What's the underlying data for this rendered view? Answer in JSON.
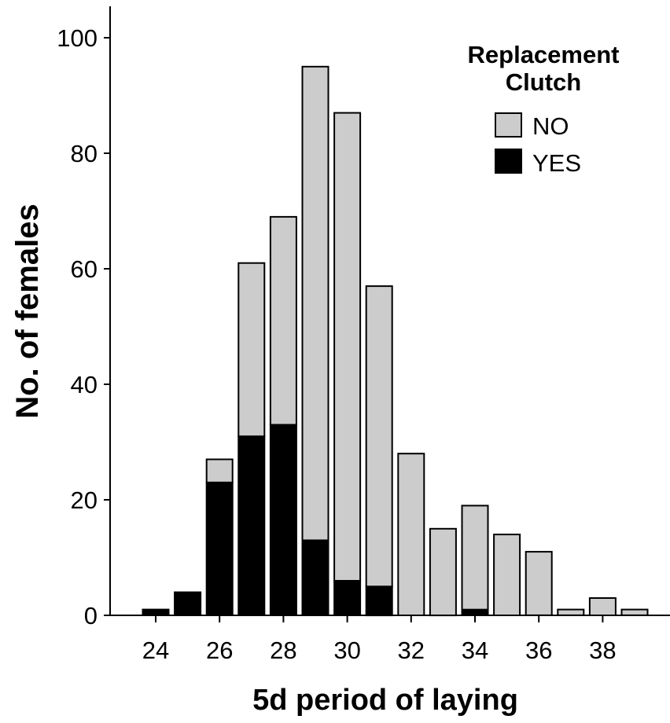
{
  "chart_data": {
    "type": "bar",
    "stacked": true,
    "xlabel": "5d period of laying",
    "ylabel": "No. of females",
    "x": [
      24,
      25,
      26,
      27,
      28,
      29,
      30,
      31,
      32,
      33,
      34,
      35,
      36,
      37,
      38,
      39
    ],
    "x_tick_labels": [
      "24",
      "26",
      "28",
      "30",
      "32",
      "34",
      "36",
      "38"
    ],
    "y_tick_labels": [
      "0",
      "20",
      "40",
      "60",
      "80",
      "100"
    ],
    "ylim": [
      0,
      105
    ],
    "grid": false,
    "legend": {
      "title": "Replacement Clutch",
      "title_lines": [
        "Replacement",
        "Clutch"
      ],
      "position": "top-right"
    },
    "series": [
      {
        "name": "YES",
        "color": "#000000",
        "values": [
          1,
          4,
          23,
          31,
          33,
          13,
          6,
          5,
          0,
          0,
          1,
          0,
          0,
          0,
          0,
          0
        ]
      },
      {
        "name": "NO",
        "color": "#cccccc",
        "values": [
          0,
          0,
          4,
          30,
          36,
          82,
          81,
          52,
          28,
          15,
          18,
          14,
          11,
          1,
          3,
          1
        ]
      }
    ]
  }
}
